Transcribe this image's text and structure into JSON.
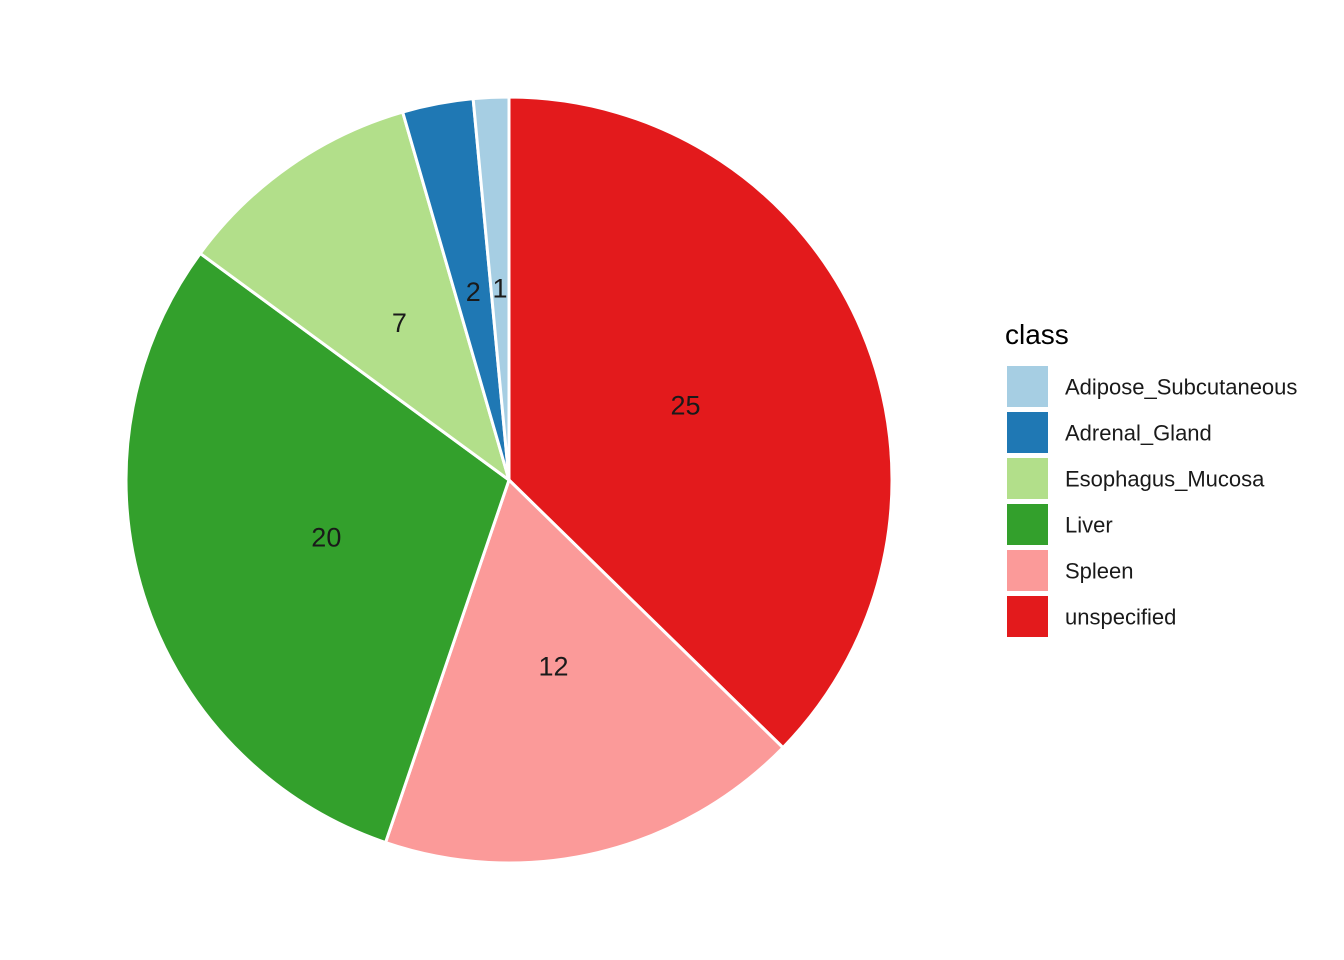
{
  "chart_data": {
    "type": "pie",
    "title": "",
    "legend_title": "class",
    "legend_position": "right",
    "start": "top",
    "direction": "clockwise",
    "slices": [
      {
        "label": "unspecified",
        "value": 25,
        "color": "#E31A1C"
      },
      {
        "label": "Spleen",
        "value": 12,
        "color": "#FB9A99"
      },
      {
        "label": "Liver",
        "value": 20,
        "color": "#33A02C"
      },
      {
        "label": "Esophagus_Mucosa",
        "value": 7,
        "color": "#B2DF8A"
      },
      {
        "label": "Adrenal_Gland",
        "value": 2,
        "color": "#1F78B4"
      },
      {
        "label": "Adipose_Subcutaneous",
        "value": 1,
        "color": "#A6CEE3"
      }
    ],
    "legend_order": [
      "Adipose_Subcutaneous",
      "Adrenal_Gland",
      "Esophagus_Mucosa",
      "Liver",
      "Spleen",
      "unspecified"
    ]
  }
}
